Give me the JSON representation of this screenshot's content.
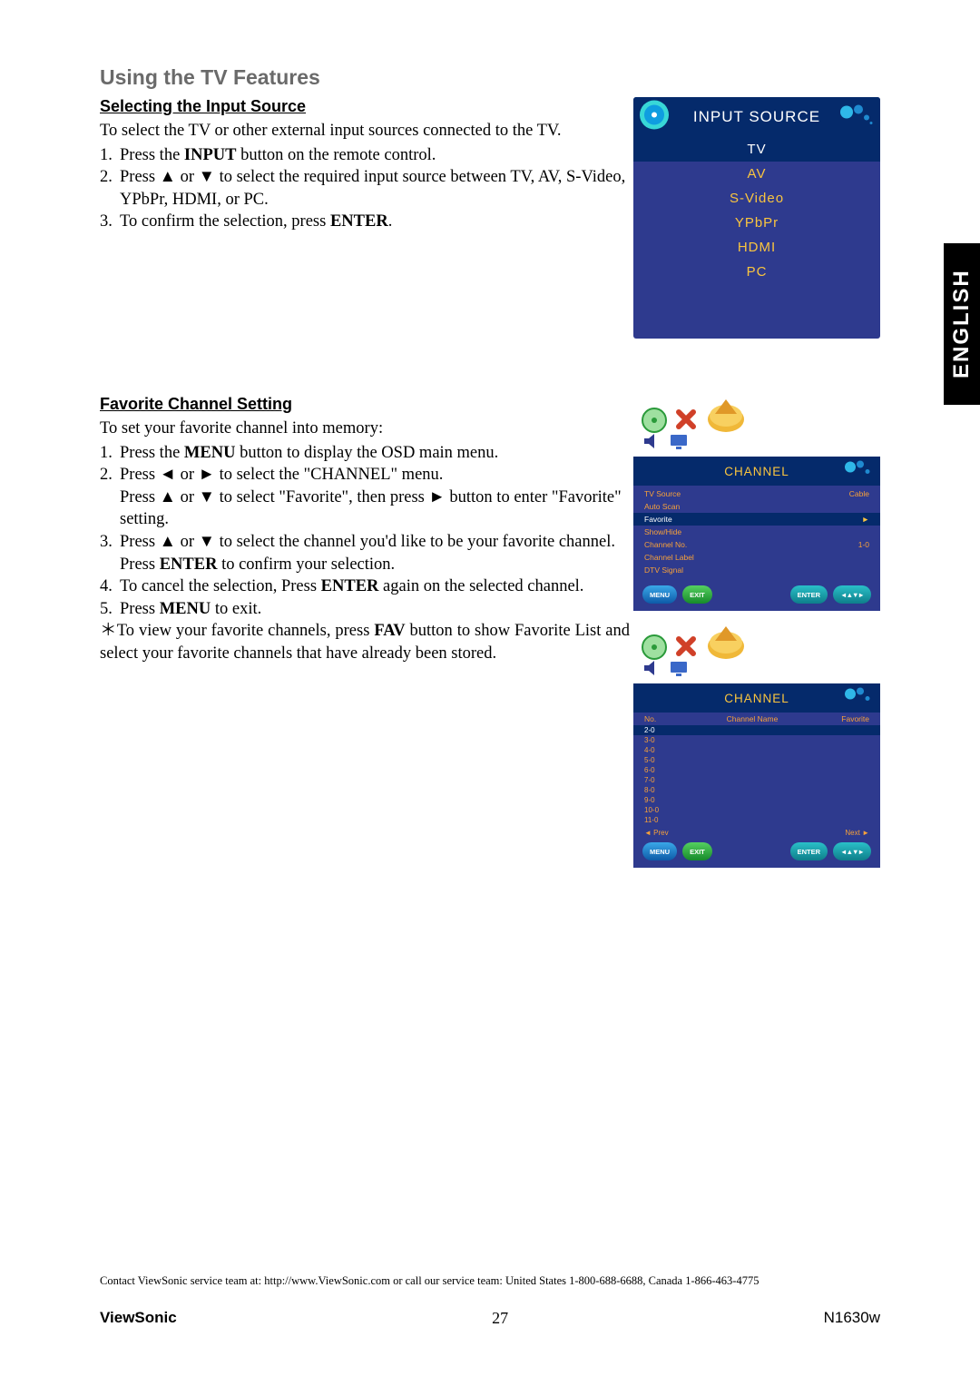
{
  "lang_tab": "ENGLISH",
  "title": "Using the TV Features",
  "section1": {
    "heading": "Selecting the Input Source",
    "intro": "To select the TV or other external input sources connected to the TV.",
    "step1_a": "Press the ",
    "step1_b": "INPUT",
    "step1_c": " button on the remote control.",
    "step2": "Press ▲ or ▼ to select the required input source between TV, AV, S-Video, YPbPr, HDMI, or PC.",
    "step3_a": "To confirm the selection, press ",
    "step3_b": "ENTER",
    "step3_c": "."
  },
  "input_source_box": {
    "title": "INPUT SOURCE",
    "items": [
      "TV",
      "AV",
      "S-Video",
      "YPbPr",
      "HDMI",
      "PC"
    ],
    "selected_index": 0,
    "bg": "#2e3a8e",
    "hl_bg": "#052a6b",
    "accent": "#fac53f"
  },
  "section2": {
    "heading": "Favorite Channel Setting",
    "intro": "To set your favorite channel into memory:",
    "s1_a": "Press the ",
    "s1_b": "MENU",
    "s1_c": " button to display the OSD main menu.",
    "s2_line1": "Press ◄ or ► to select the \"CHANNEL\" menu.",
    "s2_line2": "Press ▲ or ▼ to select \"Favorite\", then press ► button to enter \"Favorite\" setting.",
    "s3_line1": "Press ▲ or ▼ to select the channel you'd like to be your favorite channel.",
    "s3_line2_a": "Press ",
    "s3_line2_b": "ENTER",
    "s3_line2_c": " to confirm your selection.",
    "s4_a": "To cancel the selection, Press ",
    "s4_b": "ENTER",
    "s4_c": " again on the selected channel.",
    "s5_a": "Press ",
    "s5_b": "MENU",
    "s5_c": " to exit.",
    "note_a": "＊To view your favorite channels, press ",
    "note_b": "FAV",
    "note_c": " button to show Favorite List and select your favorite channels that have already been stored."
  },
  "osd1": {
    "title": "CHANNEL",
    "rows": [
      {
        "l": "TV Source",
        "r": "Cable",
        "hl": false
      },
      {
        "l": "Auto Scan",
        "r": "",
        "hl": false
      },
      {
        "l": "Favorite",
        "r": "►",
        "hl": true
      },
      {
        "l": "Show/Hide",
        "r": "",
        "hl": false
      },
      {
        "l": "Channel No.",
        "r": "1-0",
        "hl": false
      },
      {
        "l": "Channel Label",
        "r": "",
        "hl": false
      },
      {
        "l": "DTV Signal",
        "r": "",
        "hl": false
      }
    ],
    "buttons": {
      "menu": "MENU",
      "exit": "EXIT",
      "enter": "ENTER"
    }
  },
  "osd2": {
    "title": "CHANNEL",
    "headers": {
      "c1": "No.",
      "c2": "Channel Name",
      "c3": "Favorite"
    },
    "rows": [
      {
        "c1": "2-0",
        "hl": true
      },
      {
        "c1": "3-0",
        "hl": false
      },
      {
        "c1": "4-0",
        "hl": false
      },
      {
        "c1": "5-0",
        "hl": false
      },
      {
        "c1": "6-0",
        "hl": false
      },
      {
        "c1": "7-0",
        "hl": false
      },
      {
        "c1": "8-0",
        "hl": false
      },
      {
        "c1": "9-0",
        "hl": false
      },
      {
        "c1": "10-0",
        "hl": false
      },
      {
        "c1": "11-0",
        "hl": false
      }
    ],
    "prev": "◄ Prev",
    "next": "Next ►",
    "buttons": {
      "menu": "MENU",
      "exit": "EXIT",
      "enter": "ENTER"
    }
  },
  "footnote": "Contact ViewSonic service team at: http://www.ViewSonic.com or call our service team: United States 1-800-688-6688, Canada 1-866-463-4775",
  "footer": {
    "brand": "ViewSonic",
    "page": "27",
    "model": "N1630w"
  }
}
